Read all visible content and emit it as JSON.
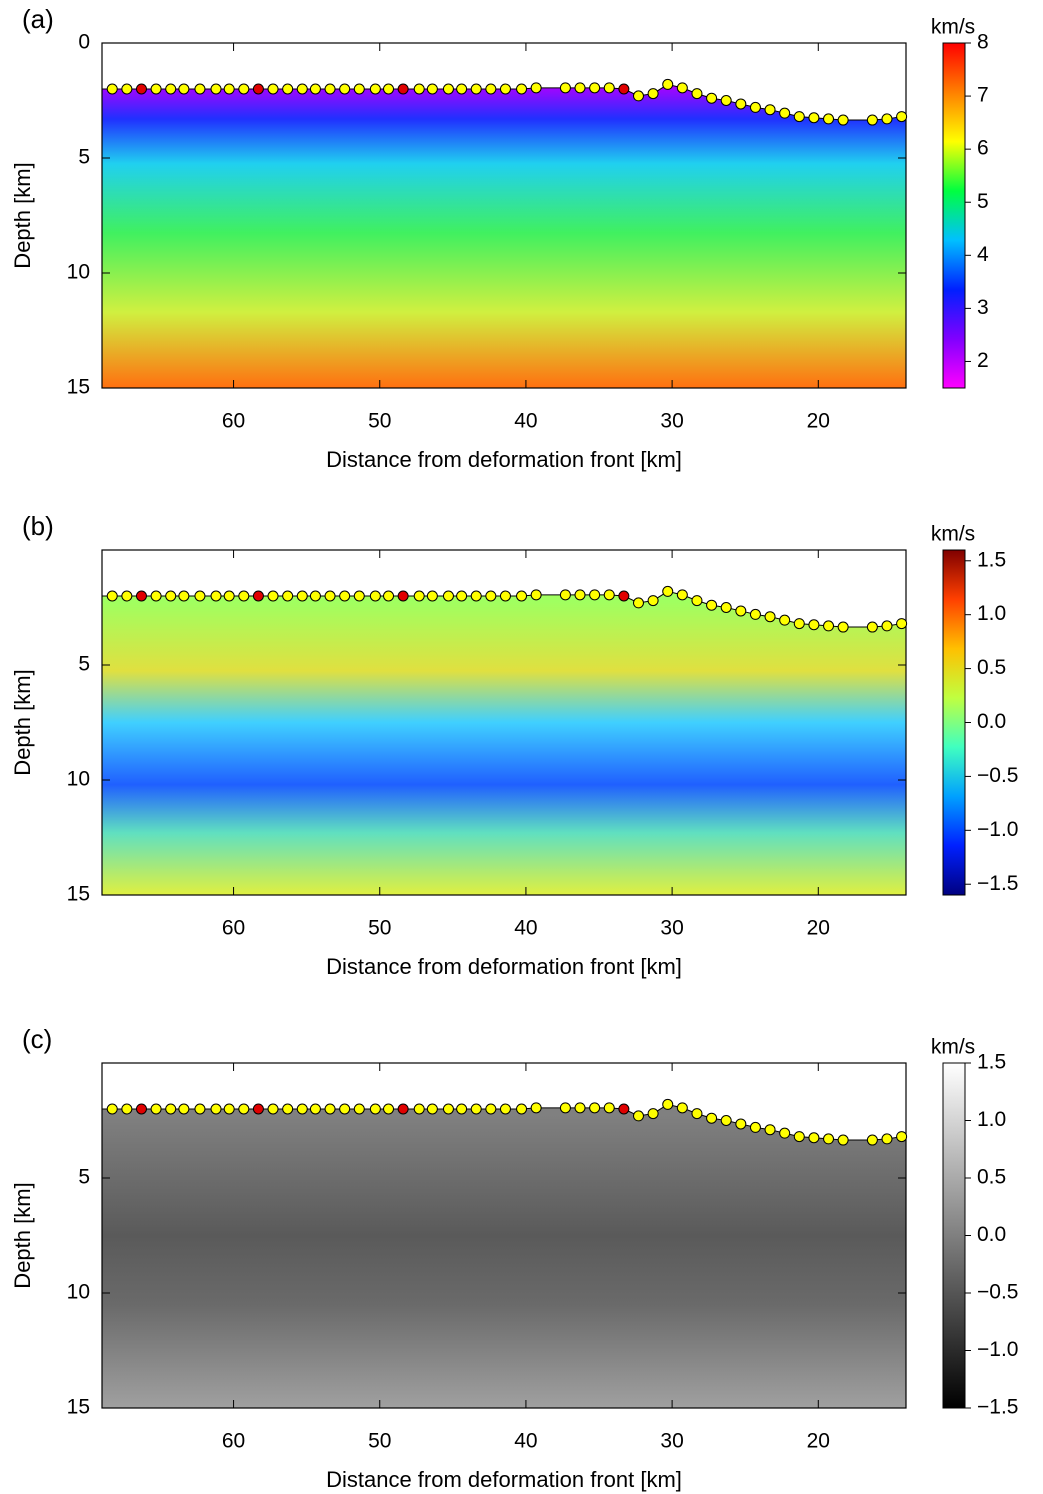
{
  "chart_data": [
    {
      "type": "heatmap",
      "panel_label": "(a)",
      "xlabel": "Distance from deformation front [km]",
      "ylabel": "Depth [km]",
      "xlim": [
        69,
        14
      ],
      "xticks": [
        60,
        50,
        40,
        30,
        20
      ],
      "ylim": [
        0,
        15
      ],
      "yticks": [
        0,
        5,
        10,
        15
      ],
      "colorbar": {
        "title": "km/s",
        "lim": [
          1.5,
          8
        ],
        "ticks": [
          2,
          3,
          4,
          5,
          6,
          7,
          8
        ],
        "colors": [
          "#ff00ff",
          "#8000ff",
          "#0020ff",
          "#00c0ff",
          "#00ff40",
          "#ffff00",
          "#ff8000",
          "#ff0000"
        ]
      },
      "series": [
        {
          "color": "#ffff00",
          "x": [
            68.3,
            67.3,
            65.3,
            64.3,
            63.4,
            62.3,
            61.2,
            60.3,
            59.3,
            57.3,
            56.3,
            55.3,
            54.4,
            53.4,
            52.4,
            51.4,
            50.3,
            49.4,
            47.3,
            46.4,
            45.3,
            44.4,
            43.4,
            42.4,
            41.4,
            40.3,
            39.3,
            37.3,
            36.3,
            35.3,
            34.3,
            32.3,
            31.3,
            30.3,
            29.3,
            28.3,
            27.3,
            26.3,
            25.3,
            24.3,
            23.3,
            22.3,
            21.3,
            20.3,
            19.3,
            18.3,
            16.3,
            15.3,
            14.3
          ],
          "values": [
            2.0,
            2.0,
            2.0,
            2.0,
            2.0,
            2.0,
            2.0,
            2.0,
            2.0,
            2.0,
            2.0,
            2.0,
            2.0,
            2.0,
            2.0,
            2.0,
            2.0,
            2.0,
            2.0,
            2.0,
            2.0,
            2.0,
            2.0,
            2.0,
            2.0,
            2.0,
            1.95,
            1.95,
            1.95,
            1.95,
            1.95,
            2.3,
            2.2,
            1.8,
            1.95,
            2.2,
            2.4,
            2.5,
            2.65,
            2.8,
            2.9,
            3.05,
            3.2,
            3.25,
            3.3,
            3.35,
            3.35,
            3.3,
            3.2
          ]
        },
        {
          "color": "#e00000",
          "x": [
            66.3,
            58.3,
            48.4,
            33.3
          ],
          "values": [
            2.0,
            2.0,
            2.0,
            2.0
          ]
        }
      ]
    },
    {
      "type": "heatmap",
      "panel_label": "(b)",
      "xlabel": "Distance from deformation front [km]",
      "ylabel": "Depth [km]",
      "xlim": [
        69,
        14
      ],
      "xticks": [
        60,
        50,
        40,
        30,
        20
      ],
      "ylim": [
        0,
        15
      ],
      "yticks": [
        5,
        10,
        15
      ],
      "colorbar": {
        "title": "km/s",
        "lim": [
          -1.6,
          1.6
        ],
        "ticks": [
          {
            "value": -1.5,
            "label": "−1.5"
          },
          {
            "value": -1.0,
            "label": "−1.0"
          },
          {
            "value": -0.5,
            "label": "−0.5"
          },
          {
            "value": 0.0,
            "label": "0.0"
          },
          0.5,
          {
            "value": 1.0,
            "label": "1.0"
          },
          1.5
        ],
        "colors": [
          "#000080",
          "#0020ff",
          "#00a0ff",
          "#40ffc0",
          "#c0ff40",
          "#ffc000",
          "#ff4000",
          "#800000"
        ]
      },
      "series": [
        {
          "color": "#ffff00",
          "x": [
            68.3,
            67.3,
            65.3,
            64.3,
            63.4,
            62.3,
            61.2,
            60.3,
            59.3,
            57.3,
            56.3,
            55.3,
            54.4,
            53.4,
            52.4,
            51.4,
            50.3,
            49.4,
            47.3,
            46.4,
            45.3,
            44.4,
            43.4,
            42.4,
            41.4,
            40.3,
            39.3,
            37.3,
            36.3,
            35.3,
            34.3,
            32.3,
            31.3,
            30.3,
            29.3,
            28.3,
            27.3,
            26.3,
            25.3,
            24.3,
            23.3,
            22.3,
            21.3,
            20.3,
            19.3,
            18.3,
            16.3,
            15.3,
            14.3
          ],
          "values": [
            2.0,
            2.0,
            2.0,
            2.0,
            2.0,
            2.0,
            2.0,
            2.0,
            2.0,
            2.0,
            2.0,
            2.0,
            2.0,
            2.0,
            2.0,
            2.0,
            2.0,
            2.0,
            2.0,
            2.0,
            2.0,
            2.0,
            2.0,
            2.0,
            2.0,
            2.0,
            1.95,
            1.95,
            1.95,
            1.95,
            1.95,
            2.3,
            2.2,
            1.8,
            1.95,
            2.2,
            2.4,
            2.5,
            2.65,
            2.8,
            2.9,
            3.05,
            3.2,
            3.25,
            3.3,
            3.35,
            3.35,
            3.3,
            3.2
          ]
        },
        {
          "color": "#e00000",
          "x": [
            66.3,
            58.3,
            48.4,
            33.3
          ],
          "values": [
            2.0,
            2.0,
            2.0,
            2.0
          ]
        }
      ]
    },
    {
      "type": "heatmap",
      "panel_label": "(c)",
      "xlabel": "Distance from deformation front [km]",
      "ylabel": "Depth [km]",
      "xlim": [
        69,
        14
      ],
      "xticks": [
        60,
        50,
        40,
        30,
        20
      ],
      "ylim": [
        0,
        15
      ],
      "yticks": [
        5,
        10,
        15
      ],
      "colorbar": {
        "title": "km/s",
        "lim": [
          -1.5,
          1.5
        ],
        "ticks": [
          {
            "value": -1.5,
            "label": "−1.5"
          },
          {
            "value": -1.0,
            "label": "−1.0"
          },
          {
            "value": -0.5,
            "label": "−0.5"
          },
          {
            "value": 0.0,
            "label": "0.0"
          },
          0.5,
          {
            "value": 1.0,
            "label": "1.0"
          },
          1.5
        ],
        "colors": [
          "#000000",
          "#ffffff"
        ]
      },
      "series": [
        {
          "color": "#ffff00",
          "x": [
            68.3,
            67.3,
            65.3,
            64.3,
            63.4,
            62.3,
            61.2,
            60.3,
            59.3,
            57.3,
            56.3,
            55.3,
            54.4,
            53.4,
            52.4,
            51.4,
            50.3,
            49.4,
            47.3,
            46.4,
            45.3,
            44.4,
            43.4,
            42.4,
            41.4,
            40.3,
            39.3,
            37.3,
            36.3,
            35.3,
            34.3,
            32.3,
            31.3,
            30.3,
            29.3,
            28.3,
            27.3,
            26.3,
            25.3,
            24.3,
            23.3,
            22.3,
            21.3,
            20.3,
            19.3,
            18.3,
            16.3,
            15.3,
            14.3
          ],
          "values": [
            2.0,
            2.0,
            2.0,
            2.0,
            2.0,
            2.0,
            2.0,
            2.0,
            2.0,
            2.0,
            2.0,
            2.0,
            2.0,
            2.0,
            2.0,
            2.0,
            2.0,
            2.0,
            2.0,
            2.0,
            2.0,
            2.0,
            2.0,
            2.0,
            2.0,
            2.0,
            1.95,
            1.95,
            1.95,
            1.95,
            1.95,
            2.3,
            2.2,
            1.8,
            1.95,
            2.2,
            2.4,
            2.5,
            2.65,
            2.8,
            2.9,
            3.05,
            3.2,
            3.25,
            3.3,
            3.35,
            3.35,
            3.3,
            3.2
          ]
        },
        {
          "color": "#e00000",
          "x": [
            66.3,
            58.3,
            48.4,
            33.3
          ],
          "values": [
            2.0,
            2.0,
            2.0,
            2.0
          ]
        }
      ]
    }
  ]
}
